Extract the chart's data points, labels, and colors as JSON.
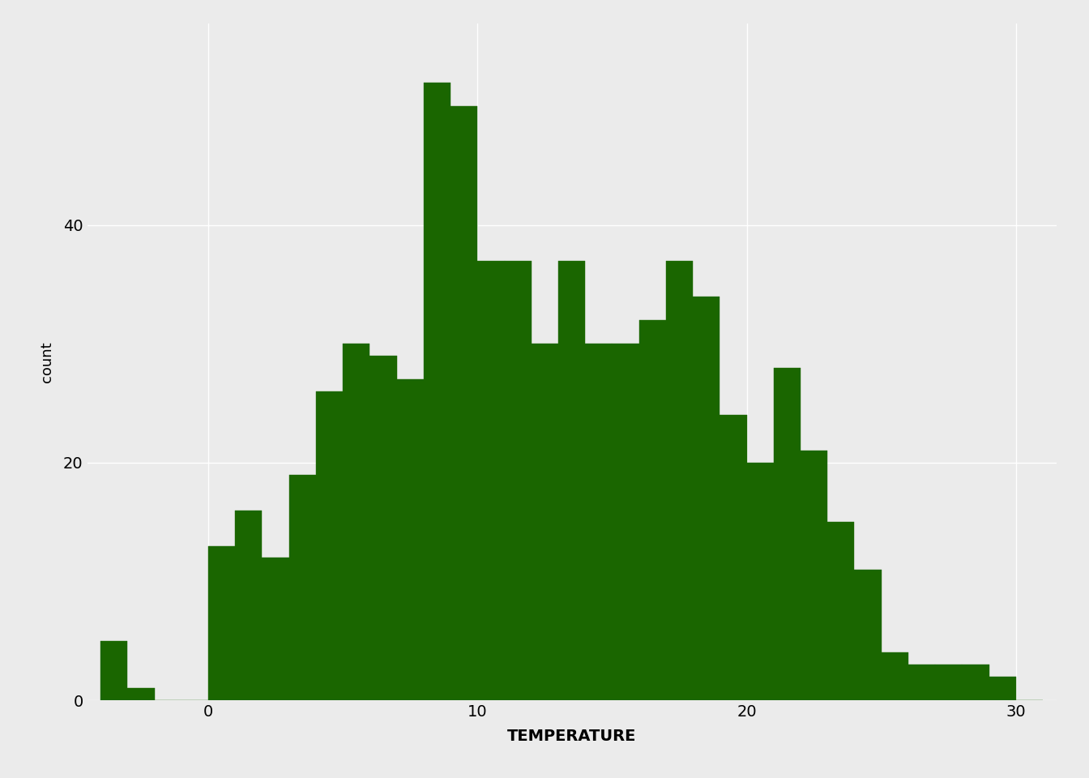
{
  "xlabel": "TEMPERATURE",
  "ylabel": "count",
  "bar_color": "#1a6600",
  "background_color": "#ebebeb",
  "grid_color": "#ffffff",
  "xlim": [
    -4.5,
    31.5
  ],
  "ylim": [
    0,
    57
  ],
  "yticks": [
    0,
    20,
    40
  ],
  "xticks": [
    0,
    10,
    20,
    30
  ],
  "bin_width": 1,
  "bins_left": [
    -4,
    -3,
    -2,
    -1,
    0,
    1,
    2,
    3,
    4,
    5,
    6,
    7,
    8,
    9,
    10,
    11,
    12,
    13,
    14,
    15,
    16,
    17,
    18,
    19,
    20,
    21,
    22,
    23,
    24,
    25,
    26,
    27,
    28,
    29,
    30
  ],
  "counts": [
    5,
    1,
    0,
    0,
    13,
    16,
    12,
    19,
    26,
    30,
    29,
    27,
    52,
    50,
    37,
    37,
    30,
    37,
    30,
    30,
    32,
    37,
    34,
    24,
    20,
    28,
    21,
    15,
    11,
    4,
    3,
    3,
    3,
    2,
    0
  ]
}
